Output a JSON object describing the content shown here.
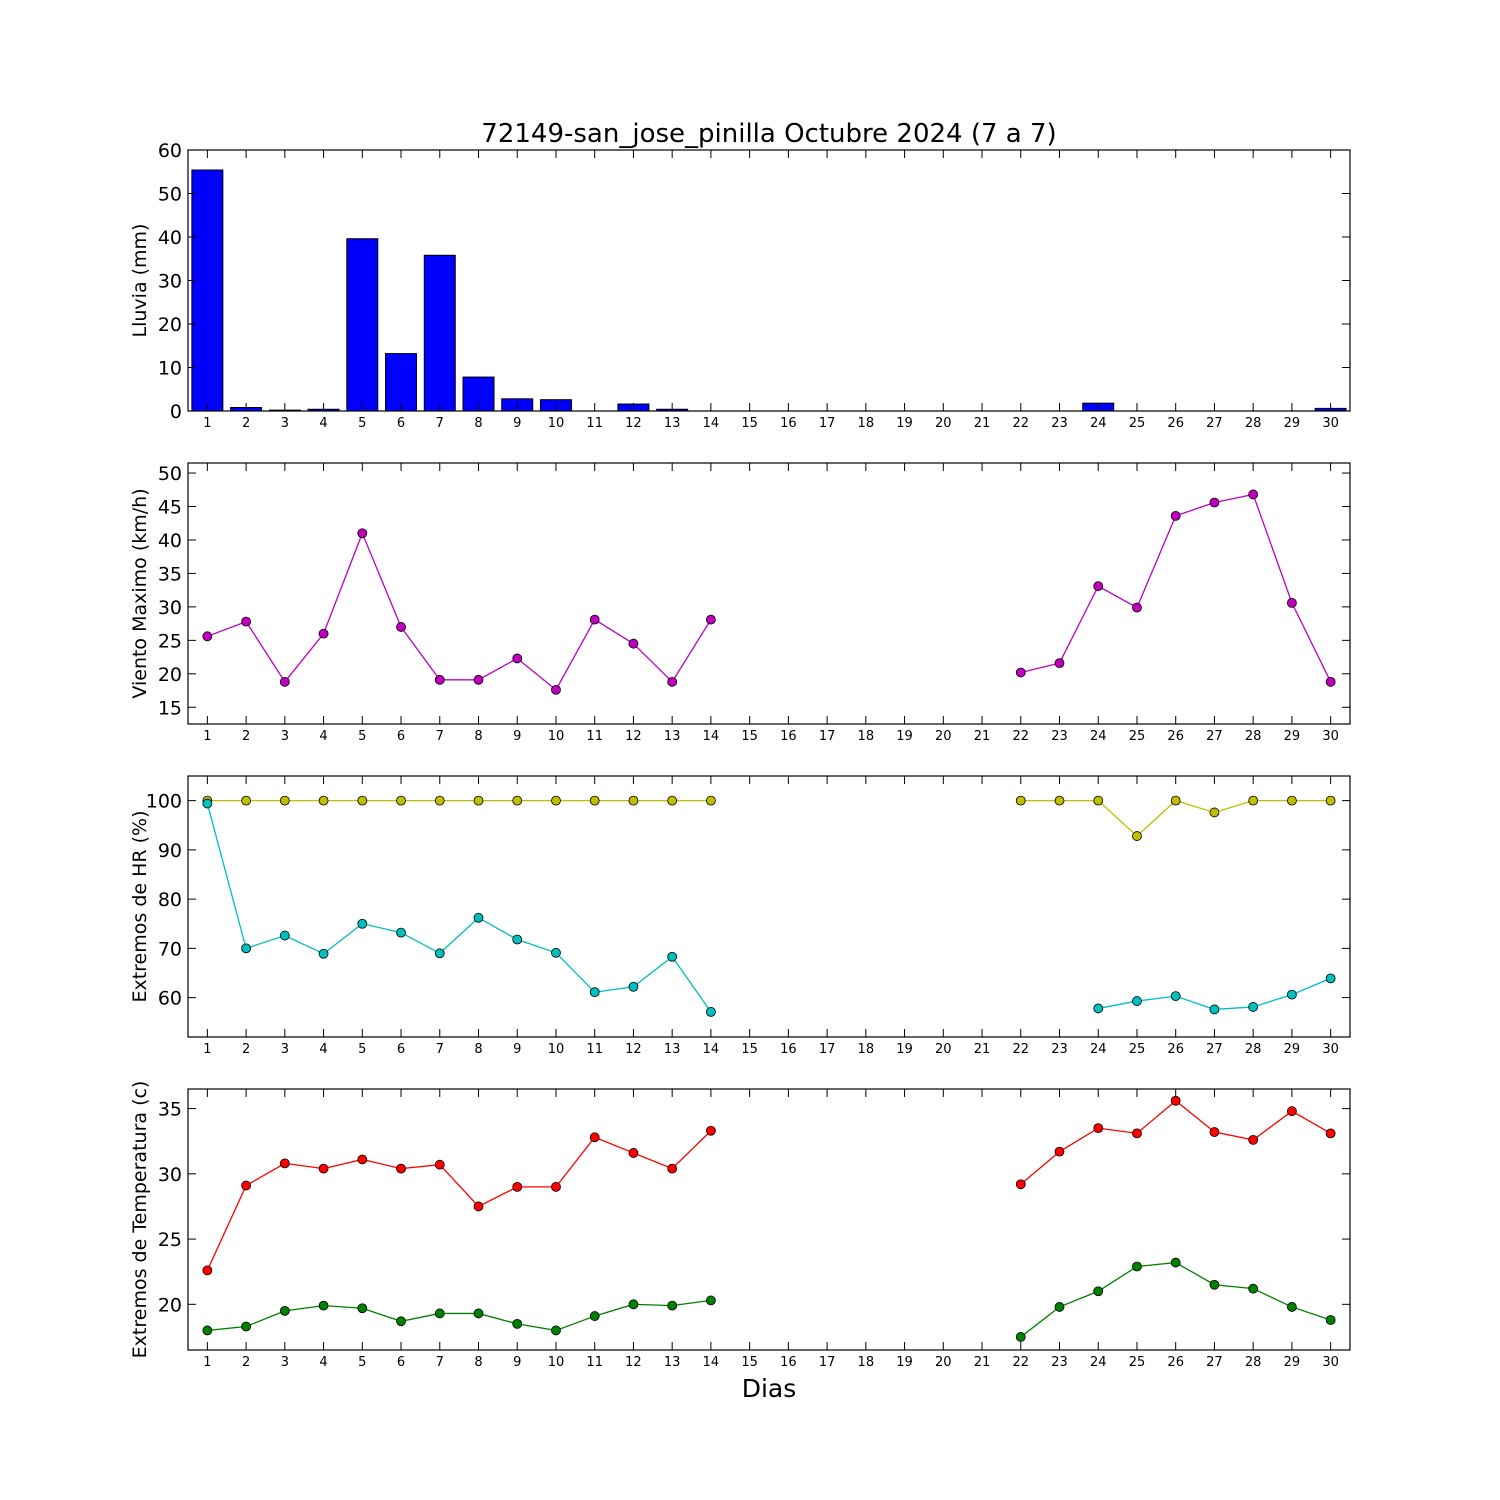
{
  "chart_data": {
    "title": "72149-san_jose_pinilla Octubre 2024  (7 a 7)",
    "xlabel": "Dias",
    "days": [
      1,
      2,
      3,
      4,
      5,
      6,
      7,
      8,
      9,
      10,
      11,
      12,
      13,
      14,
      15,
      16,
      17,
      18,
      19,
      20,
      21,
      22,
      23,
      24,
      25,
      26,
      27,
      28,
      29,
      30
    ],
    "panels": [
      {
        "type": "bar",
        "ylabel": "Lluvia (mm)",
        "ylim": [
          0,
          60
        ],
        "yticks": [
          0,
          10,
          20,
          30,
          40,
          50,
          60
        ],
        "series": [
          {
            "color": "#0000ff",
            "values": [
              55.4,
              0.8,
              0.2,
              0.4,
              39.6,
              13.2,
              35.8,
              7.8,
              2.8,
              2.6,
              0,
              1.6,
              0.4,
              0,
              0,
              0,
              0,
              0,
              0,
              0,
              0,
              0,
              0,
              1.8,
              0,
              0,
              0,
              0,
              0,
              0.6
            ]
          }
        ]
      },
      {
        "type": "line",
        "ylabel": "Viento Maximo (km/h)",
        "ylim": [
          12.5,
          51.5
        ],
        "yticks": [
          15,
          20,
          25,
          30,
          35,
          40,
          45,
          50
        ],
        "series": [
          {
            "color": "#bf00bf",
            "values": [
              25.6,
              27.8,
              18.8,
              26.0,
              41.0,
              27.0,
              19.1,
              19.1,
              22.3,
              17.6,
              28.1,
              24.5,
              18.8,
              28.1,
              null,
              null,
              null,
              null,
              null,
              null,
              null,
              20.2,
              21.6,
              33.1,
              29.9,
              43.6,
              45.6,
              46.8,
              30.6,
              18.8
            ]
          }
        ]
      },
      {
        "type": "line",
        "ylabel": "Extremos de HR (%)",
        "ylim": [
          52,
          105
        ],
        "yticks": [
          60,
          70,
          80,
          90,
          100
        ],
        "series": [
          {
            "color": "#bfbf00",
            "values": [
              100,
              100,
              100,
              100,
              100,
              100,
              100,
              100,
              100,
              100,
              100,
              100,
              100,
              100,
              null,
              null,
              null,
              null,
              null,
              null,
              null,
              100,
              100,
              100,
              92.8,
              100,
              97.6,
              100,
              100,
              100
            ]
          },
          {
            "color": "#00bfbf",
            "values": [
              99.4,
              70.0,
              72.6,
              68.9,
              75.0,
              73.2,
              69.0,
              76.2,
              71.8,
              69.1,
              61.1,
              62.2,
              68.3,
              57.1,
              null,
              null,
              null,
              null,
              null,
              null,
              null,
              null,
              null,
              57.8,
              59.3,
              60.3,
              57.6,
              58.1,
              60.6,
              63.9
            ]
          }
        ]
      },
      {
        "type": "line",
        "ylabel": "Extremos de Temperatura (c)",
        "ylim": [
          16.5,
          36.5
        ],
        "yticks": [
          20,
          25,
          30,
          35
        ],
        "series": [
          {
            "color": "#ff0000",
            "values": [
              22.6,
              29.1,
              30.8,
              30.4,
              31.1,
              30.4,
              30.7,
              27.5,
              29.0,
              29.0,
              32.8,
              31.6,
              30.4,
              33.3,
              null,
              null,
              null,
              null,
              null,
              null,
              null,
              29.2,
              31.7,
              33.5,
              33.1,
              35.6,
              33.2,
              32.6,
              34.8,
              33.1
            ]
          },
          {
            "color": "#008000",
            "values": [
              18.0,
              18.3,
              19.5,
              19.9,
              19.7,
              18.7,
              19.3,
              19.3,
              18.5,
              18.0,
              19.1,
              20.0,
              19.9,
              20.3,
              null,
              null,
              null,
              null,
              null,
              null,
              null,
              17.5,
              19.8,
              21.0,
              22.9,
              23.2,
              21.5,
              21.2,
              19.8,
              18.8
            ]
          }
        ]
      }
    ]
  }
}
